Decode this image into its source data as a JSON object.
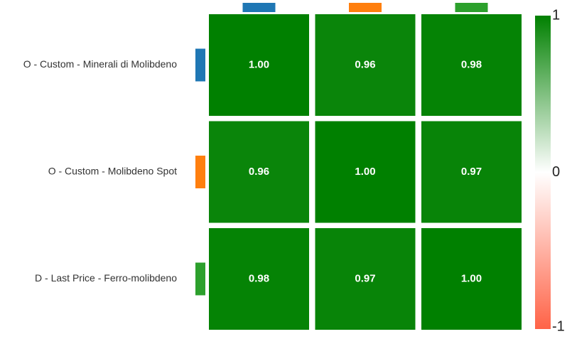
{
  "chart_data": {
    "type": "heatmap",
    "categories": [
      "O - Custom - Minerali di Molibdeno",
      "O - Custom - Molibdeno Spot",
      "D - Last Price - Ferro-molibdeno"
    ],
    "colors": [
      "#1f77b4",
      "#ff7f0e",
      "#2ca02c"
    ],
    "values": [
      [
        1,
        0.96,
        0.98
      ],
      [
        0.96,
        1,
        0.97
      ],
      [
        0.98,
        0.97,
        1
      ]
    ],
    "value_labels": [
      [
        "1.00",
        "0.96",
        "0.98"
      ],
      [
        "0.96",
        "1.00",
        "0.97"
      ],
      [
        "0.98",
        "0.97",
        "1.00"
      ]
    ],
    "colorscale": [
      "#ff6347",
      "#ffffff",
      "#008000"
    ],
    "zlim": [
      -1,
      1
    ],
    "zticks": [
      1,
      0,
      -1
    ]
  }
}
